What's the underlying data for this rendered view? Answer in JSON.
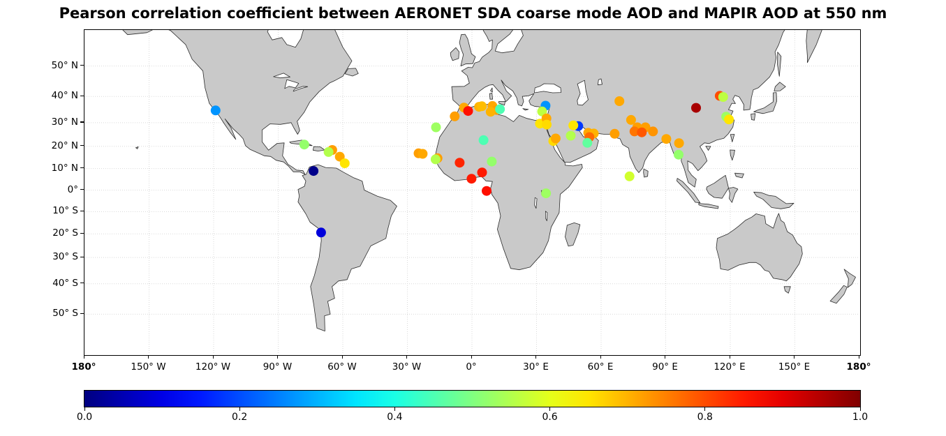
{
  "title": "Pearson correlation coefficient between AERONET SDA coarse mode AOD and MAPIR AOD at 550 nm",
  "colors": {
    "land": "#c9c9c9",
    "coastline": "#2b2b2b",
    "ocean": "#ffffff",
    "grid": "#d9d9d9",
    "frame": "#000000"
  },
  "map": {
    "x_ticks": [
      {
        "label": "180°",
        "lon": -180,
        "bold": true
      },
      {
        "label": "150° W",
        "lon": -150,
        "bold": false
      },
      {
        "label": "120° W",
        "lon": -120,
        "bold": false
      },
      {
        "label": "90° W",
        "lon": -90,
        "bold": false
      },
      {
        "label": "60° W",
        "lon": -60,
        "bold": false
      },
      {
        "label": "30° W",
        "lon": -30,
        "bold": false
      },
      {
        "label": "0°",
        "lon": 0,
        "bold": false
      },
      {
        "label": "30° E",
        "lon": 30,
        "bold": false
      },
      {
        "label": "60° E",
        "lon": 60,
        "bold": false
      },
      {
        "label": "90° E",
        "lon": 90,
        "bold": false
      },
      {
        "label": "120° E",
        "lon": 120,
        "bold": false
      },
      {
        "label": "150° E",
        "lon": 150,
        "bold": false
      },
      {
        "label": "180°",
        "lon": 180,
        "bold": true
      }
    ],
    "y_ticks": [
      {
        "label": "50° N",
        "lat": 50
      },
      {
        "label": "40° N",
        "lat": 40
      },
      {
        "label": "30° N",
        "lat": 30
      },
      {
        "label": "20° N",
        "lat": 20
      },
      {
        "label": "10° N",
        "lat": 10
      },
      {
        "label": "0°",
        "lat": 0
      },
      {
        "label": "10° S",
        "lat": -10
      },
      {
        "label": "20° S",
        "lat": -20
      },
      {
        "label": "30° S",
        "lat": -30
      },
      {
        "label": "40° S",
        "lat": -40
      },
      {
        "label": "50° S",
        "lat": -50
      }
    ]
  },
  "colorbar": {
    "min": 0.0,
    "max": 1.0,
    "colormap": "jet",
    "tick_labels": [
      "0.0",
      "0.2",
      "0.4",
      "0.6",
      "0.8",
      "1.0"
    ]
  },
  "chart_data": {
    "type": "scatter",
    "projection": "mercator",
    "title": "Pearson correlation coefficient between AERONET SDA coarse mode AOD and MAPIR AOD at 550 nm",
    "colormap": "jet",
    "value_range": [
      0.0,
      1.0
    ],
    "lon_range": [
      -180,
      180
    ],
    "lat_range": [
      -61,
      61
    ],
    "grid": true,
    "points": [
      {
        "lon": -119.1,
        "lat": 34.8,
        "value": 0.27
      },
      {
        "lon": -77.9,
        "lat": 20.8,
        "value": 0.52
      },
      {
        "lon": -64.9,
        "lat": 18.4,
        "value": 0.72
      },
      {
        "lon": -66.6,
        "lat": 17.5,
        "value": 0.55
      },
      {
        "lon": -61.4,
        "lat": 15.4,
        "value": 0.71
      },
      {
        "lon": -59.1,
        "lat": 12.4,
        "value": 0.65
      },
      {
        "lon": -73.6,
        "lat": 8.9,
        "value": 0.01
      },
      {
        "lon": -70.1,
        "lat": -19.4,
        "value": 0.09
      },
      {
        "lon": -16.7,
        "lat": 28.1,
        "value": 0.53
      },
      {
        "lon": -8.0,
        "lat": 32.5,
        "value": 0.72
      },
      {
        "lon": -3.7,
        "lat": 35.9,
        "value": 0.71
      },
      {
        "lon": -1.8,
        "lat": 34.6,
        "value": 0.86
      },
      {
        "lon": 3.3,
        "lat": 36.2,
        "value": 0.7
      },
      {
        "lon": 4.6,
        "lat": 36.4,
        "value": 0.69
      },
      {
        "lon": 9.5,
        "lat": 36.5,
        "value": 0.71
      },
      {
        "lon": 11.4,
        "lat": 35.0,
        "value": 0.72
      },
      {
        "lon": 8.7,
        "lat": 34.3,
        "value": 0.7
      },
      {
        "lon": 13.0,
        "lat": 35.3,
        "value": 0.45
      },
      {
        "lon": 31.6,
        "lat": 29.6,
        "value": 0.65
      },
      {
        "lon": 34.2,
        "lat": 36.6,
        "value": 0.27
      },
      {
        "lon": 32.6,
        "lat": 34.4,
        "value": 0.56
      },
      {
        "lon": 34.6,
        "lat": 31.7,
        "value": 0.71
      },
      {
        "lon": 34.7,
        "lat": 29.2,
        "value": 0.66
      },
      {
        "lon": -24.8,
        "lat": 16.9,
        "value": 0.72
      },
      {
        "lon": -22.9,
        "lat": 16.7,
        "value": 0.71
      },
      {
        "lon": -16.0,
        "lat": 14.7,
        "value": 0.72
      },
      {
        "lon": -16.9,
        "lat": 14.2,
        "value": 0.55
      },
      {
        "lon": 5.4,
        "lat": 22.7,
        "value": 0.45
      },
      {
        "lon": -5.7,
        "lat": 12.7,
        "value": 0.84
      },
      {
        "lon": 9.2,
        "lat": 13.2,
        "value": 0.52
      },
      {
        "lon": 4.7,
        "lat": 8.2,
        "value": 0.85
      },
      {
        "lon": -0.2,
        "lat": 5.3,
        "value": 0.85
      },
      {
        "lon": 6.8,
        "lat": -0.4,
        "value": 0.86
      },
      {
        "lon": 34.4,
        "lat": -1.5,
        "value": 0.53
      },
      {
        "lon": 49.4,
        "lat": 28.6,
        "value": 0.18
      },
      {
        "lon": 47.1,
        "lat": 28.9,
        "value": 0.65
      },
      {
        "lon": 45.9,
        "lat": 24.6,
        "value": 0.55
      },
      {
        "lon": 37.8,
        "lat": 22.3,
        "value": 0.66
      },
      {
        "lon": 38.9,
        "lat": 23.4,
        "value": 0.71
      },
      {
        "lon": 54.0,
        "lat": 25.8,
        "value": 0.71
      },
      {
        "lon": 56.6,
        "lat": 25.5,
        "value": 0.7
      },
      {
        "lon": 54.6,
        "lat": 24.0,
        "value": 0.77
      },
      {
        "lon": 53.6,
        "lat": 21.5,
        "value": 0.47
      },
      {
        "lon": 68.5,
        "lat": 38.3,
        "value": 0.71
      },
      {
        "lon": 66.3,
        "lat": 25.4,
        "value": 0.72
      },
      {
        "lon": 73.9,
        "lat": 31.1,
        "value": 0.71
      },
      {
        "lon": 76.8,
        "lat": 28.1,
        "value": 0.72
      },
      {
        "lon": 75.5,
        "lat": 26.4,
        "value": 0.76
      },
      {
        "lon": 80.6,
        "lat": 28.1,
        "value": 0.72
      },
      {
        "lon": 78.9,
        "lat": 26.0,
        "value": 0.79
      },
      {
        "lon": 84.1,
        "lat": 26.4,
        "value": 0.73
      },
      {
        "lon": 90.3,
        "lat": 23.2,
        "value": 0.71
      },
      {
        "lon": 96.2,
        "lat": 21.4,
        "value": 0.71
      },
      {
        "lon": 96.0,
        "lat": 16.3,
        "value": 0.52
      },
      {
        "lon": 73.2,
        "lat": 6.4,
        "value": 0.58
      },
      {
        "lon": 104.1,
        "lat": 35.8,
        "value": 0.96
      },
      {
        "lon": 115.1,
        "lat": 40.2,
        "value": 0.8
      },
      {
        "lon": 116.7,
        "lat": 39.8,
        "value": 0.56
      },
      {
        "lon": 118.1,
        "lat": 32.4,
        "value": 0.53
      },
      {
        "lon": 119.4,
        "lat": 31.3,
        "value": 0.65
      }
    ]
  }
}
